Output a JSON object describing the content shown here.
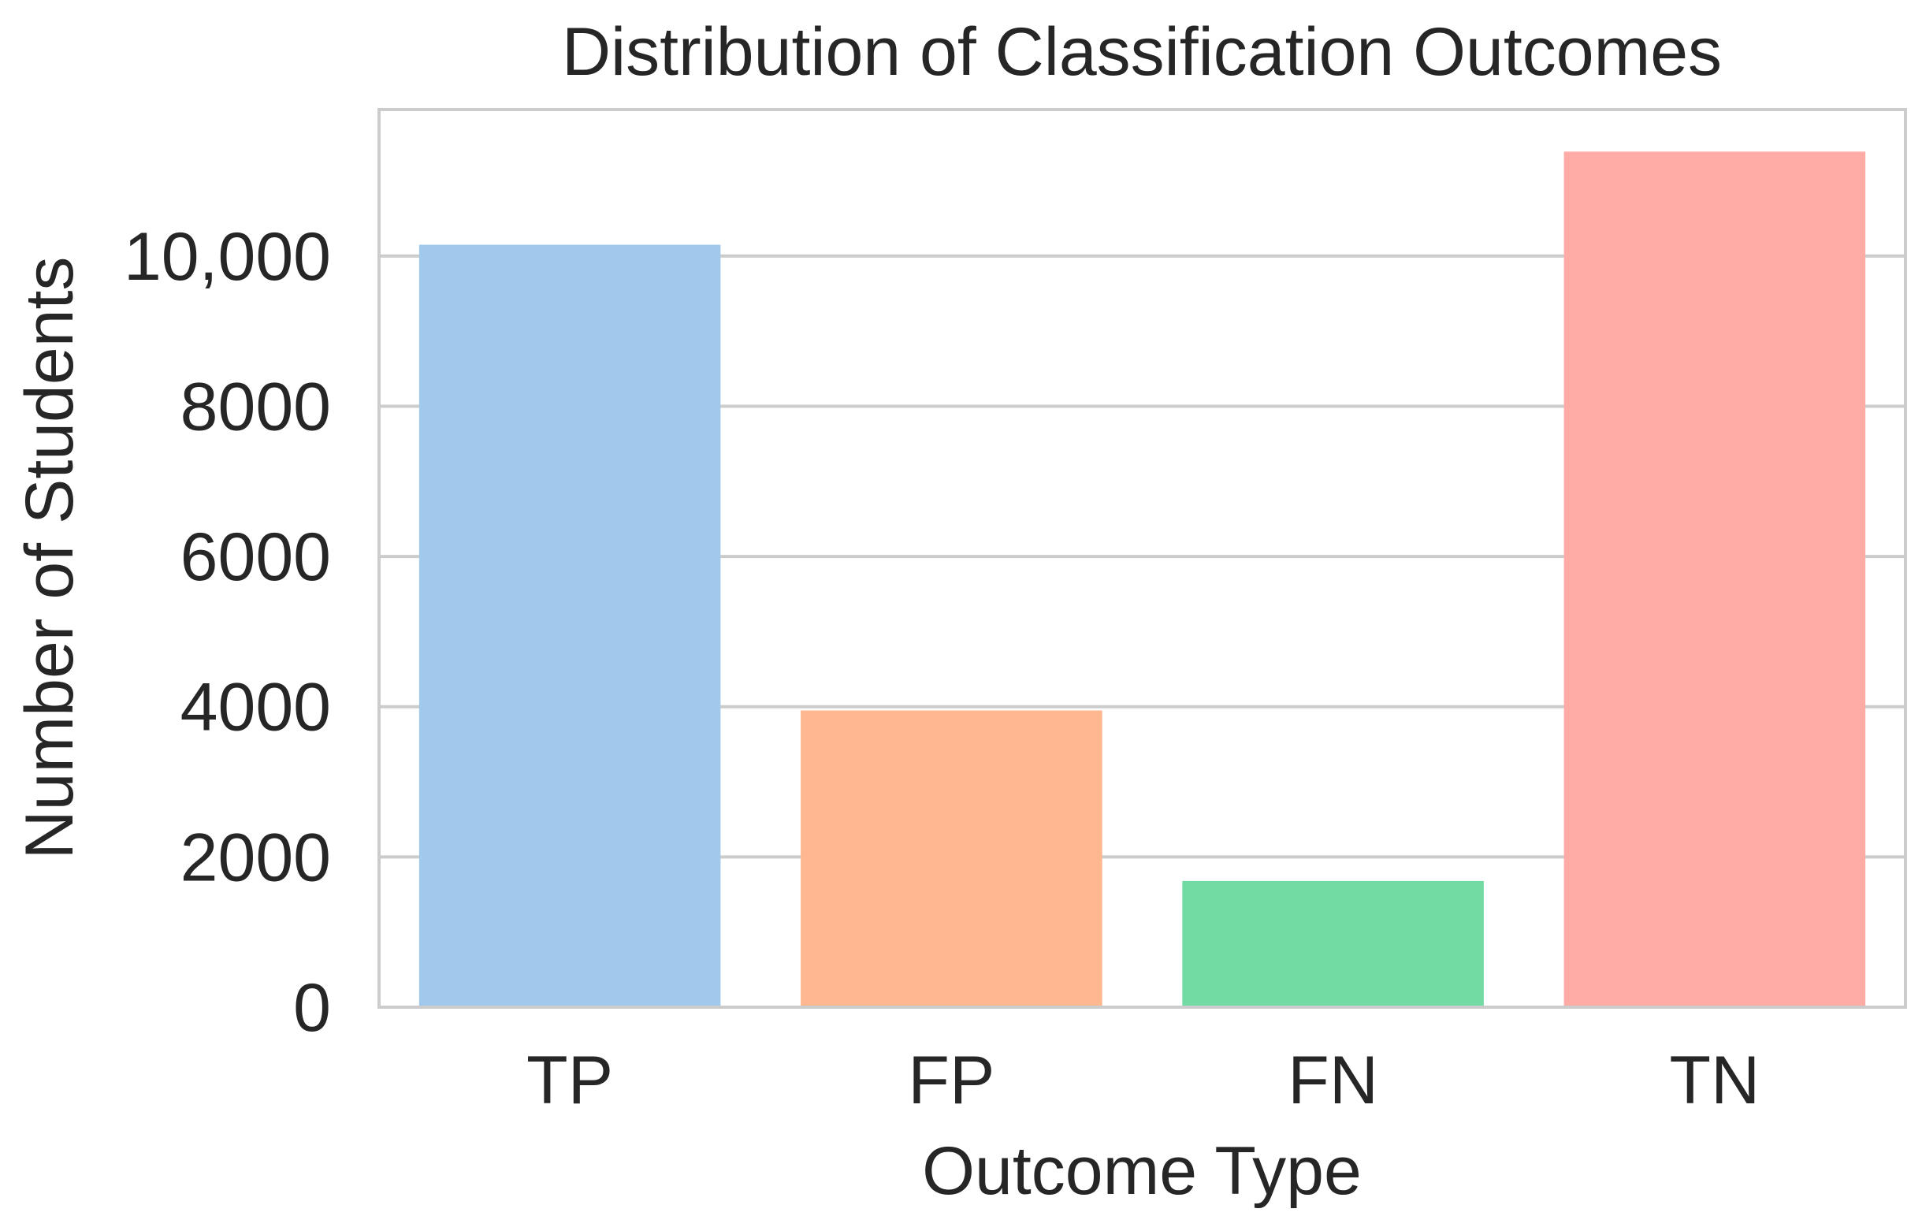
{
  "chart_data": {
    "type": "bar",
    "title": "Distribution of Classification Outcomes",
    "xlabel": "Outcome Type",
    "ylabel": "Number of Students",
    "categories": [
      "TP",
      "FP",
      "FN",
      "TN"
    ],
    "values": [
      10150,
      3950,
      1680,
      11390
    ],
    "colors": [
      "#a1c9ec",
      "#ffb78f",
      "#72dba4",
      "#ffaca6"
    ],
    "ylim": [
      0,
      11950
    ],
    "yticks": [
      0,
      2000,
      4000,
      6000,
      8000,
      10000
    ],
    "ytick_labels": [
      "0",
      "2000",
      "4000",
      "6000",
      "8000",
      "10,000"
    ],
    "grid": "horizontal",
    "legend": "none"
  }
}
